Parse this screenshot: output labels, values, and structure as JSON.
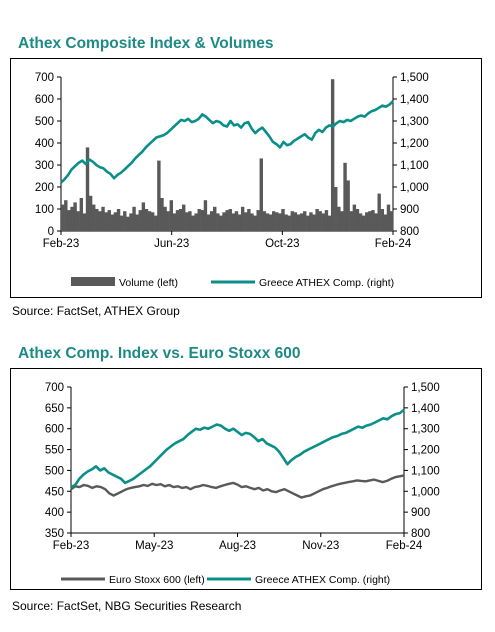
{
  "charts": [
    {
      "title": "Athex Composite Index & Volumes",
      "source": "Source: FactSet, ATHEX Group"
    },
    {
      "title": "Athex Comp. Index vs. Euro Stoxx 600",
      "source": "Source: FactSet, NBG Securities Research"
    }
  ],
  "chart_data": [
    {
      "type": "bar",
      "title": "Athex Composite Index & Volumes",
      "x_ticks": [
        "Feb-23",
        "Jun-23",
        "Oct-23",
        "Feb-24"
      ],
      "y_left": {
        "ticks": [
          "0",
          "100",
          "200",
          "300",
          "400",
          "500",
          "600",
          "700"
        ],
        "range": [
          0,
          700
        ]
      },
      "y_right": {
        "ticks": [
          "800",
          "900",
          "1,000",
          "1,100",
          "1,200",
          "1,300",
          "1,400",
          "1,500"
        ],
        "range": [
          800,
          1500
        ]
      },
      "series": [
        {
          "name": "Volume (left)",
          "type": "bar",
          "axis": "left",
          "color": "#595959",
          "values": [
            120,
            140,
            95,
            110,
            130,
            90,
            150,
            80,
            380,
            160,
            120,
            100,
            90,
            110,
            85,
            95,
            75,
            85,
            100,
            70,
            90,
            65,
            80,
            110,
            75,
            95,
            130,
            100,
            90,
            85,
            70,
            320,
            150,
            110,
            90,
            140,
            80,
            95,
            100,
            120,
            85,
            90,
            70,
            80,
            100,
            95,
            140,
            75,
            90,
            110,
            80,
            70,
            85,
            95,
            100,
            80,
            90,
            75,
            110,
            85,
            100,
            80,
            70,
            95,
            330,
            90,
            80,
            75,
            90,
            85,
            80,
            100,
            75,
            70,
            90,
            85,
            75,
            80,
            90,
            70,
            85,
            75,
            100,
            90,
            80,
            95,
            70,
            690,
            200,
            110,
            90,
            310,
            230,
            90,
            120,
            100,
            80,
            70,
            85,
            90,
            95,
            80,
            170,
            100,
            75,
            120,
            90
          ]
        },
        {
          "name": "Greece ATHEX Comp. (right)",
          "type": "line",
          "axis": "right",
          "color": "#0a8f8a",
          "values": [
            1020,
            1035,
            1055,
            1080,
            1095,
            1110,
            1120,
            1105,
            1125,
            1115,
            1100,
            1090,
            1085,
            1070,
            1060,
            1040,
            1055,
            1065,
            1080,
            1095,
            1110,
            1130,
            1145,
            1160,
            1180,
            1195,
            1210,
            1225,
            1230,
            1235,
            1245,
            1260,
            1275,
            1290,
            1305,
            1300,
            1310,
            1295,
            1300,
            1310,
            1330,
            1320,
            1305,
            1290,
            1300,
            1295,
            1280,
            1275,
            1300,
            1280,
            1285,
            1270,
            1290,
            1295,
            1265,
            1245,
            1260,
            1270,
            1250,
            1230,
            1205,
            1195,
            1180,
            1205,
            1190,
            1195,
            1210,
            1220,
            1230,
            1240,
            1225,
            1215,
            1245,
            1260,
            1250,
            1270,
            1280,
            1275,
            1290,
            1300,
            1295,
            1305,
            1300,
            1310,
            1320,
            1325,
            1320,
            1335,
            1345,
            1350,
            1360,
            1370,
            1365,
            1375,
            1390
          ]
        }
      ]
    },
    {
      "type": "line",
      "title": "Athex Comp. Index vs. Euro Stoxx 600",
      "x_ticks": [
        "Feb-23",
        "May-23",
        "Aug-23",
        "Nov-23",
        "Feb-24"
      ],
      "y_left": {
        "ticks": [
          "350",
          "400",
          "450",
          "500",
          "550",
          "600",
          "650",
          "700"
        ],
        "range": [
          350,
          700
        ]
      },
      "y_right": {
        "ticks": [
          "800",
          "900",
          "1,000",
          "1,100",
          "1,200",
          "1,300",
          "1,400",
          "1,500"
        ],
        "range": [
          800,
          1500
        ]
      },
      "series": [
        {
          "name": "Euro Stoxx 600 (left)",
          "axis": "left",
          "color": "#595959",
          "values": [
            455,
            462,
            460,
            465,
            463,
            458,
            462,
            460,
            455,
            445,
            440,
            445,
            450,
            455,
            458,
            460,
            462,
            465,
            463,
            468,
            465,
            467,
            462,
            465,
            460,
            462,
            458,
            460,
            455,
            460,
            462,
            465,
            463,
            460,
            458,
            462,
            465,
            468,
            470,
            466,
            460,
            462,
            458,
            455,
            458,
            452,
            455,
            450,
            448,
            452,
            455,
            450,
            445,
            440,
            435,
            438,
            440,
            445,
            450,
            455,
            458,
            462,
            465,
            468,
            470,
            472,
            474,
            476,
            475,
            474,
            476,
            478,
            475,
            472,
            475,
            480,
            484,
            486,
            488
          ]
        },
        {
          "name": "Greece ATHEX Comp. (right)",
          "axis": "right",
          "color": "#0a8f8a",
          "values": [
            1020,
            1030,
            1060,
            1080,
            1095,
            1105,
            1120,
            1100,
            1110,
            1090,
            1080,
            1070,
            1060,
            1040,
            1050,
            1060,
            1075,
            1090,
            1105,
            1120,
            1140,
            1160,
            1180,
            1200,
            1215,
            1230,
            1240,
            1250,
            1270,
            1285,
            1300,
            1295,
            1305,
            1300,
            1310,
            1320,
            1315,
            1300,
            1290,
            1300,
            1285,
            1270,
            1280,
            1275,
            1260,
            1240,
            1250,
            1230,
            1220,
            1210,
            1190,
            1160,
            1130,
            1150,
            1165,
            1175,
            1190,
            1200,
            1210,
            1220,
            1230,
            1240,
            1250,
            1260,
            1265,
            1275,
            1280,
            1290,
            1300,
            1310,
            1305,
            1315,
            1320,
            1330,
            1340,
            1350,
            1345,
            1360,
            1370,
            1375,
            1390
          ]
        }
      ]
    }
  ]
}
